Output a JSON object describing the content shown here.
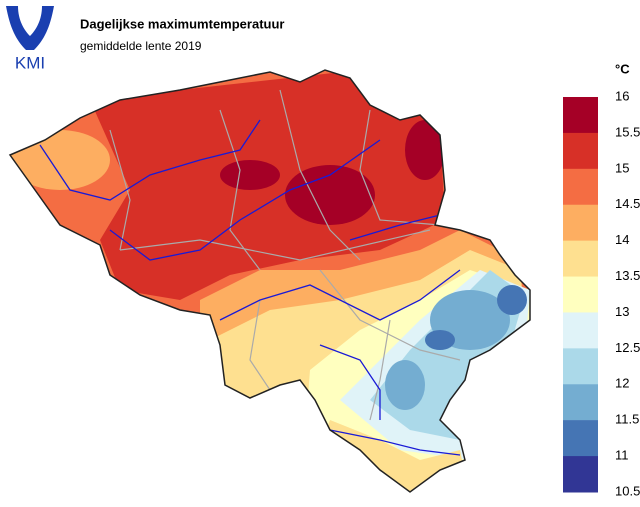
{
  "header": {
    "logo": "KMI",
    "title": "Dagelijkse maximumtemperatuur",
    "subtitle": "gemiddelde lente 2019"
  },
  "legend": {
    "unit": "°C",
    "ticks": [
      16,
      15.5,
      15,
      14.5,
      14,
      13.5,
      13,
      12.5,
      12,
      11.5,
      11,
      10.5
    ],
    "colors": [
      "#a50026",
      "#d73027",
      "#f46d43",
      "#fdae61",
      "#fee090",
      "#ffffbf",
      "#e0f3f8",
      "#abd9e9",
      "#74add1",
      "#4575b4",
      "#313695"
    ]
  }
}
